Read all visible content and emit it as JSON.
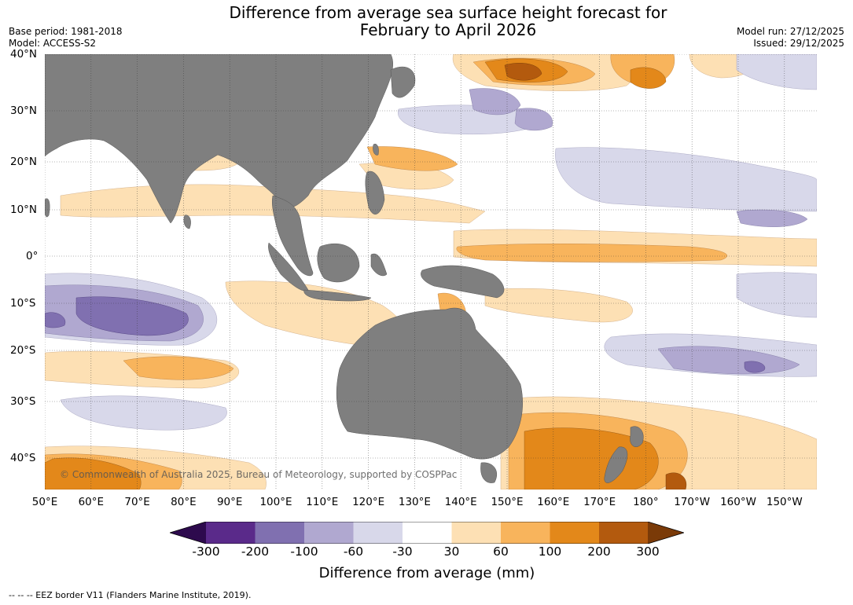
{
  "title": {
    "line1": "Difference from average sea surface height forecast for",
    "line2": "February to April 2026"
  },
  "meta_left": {
    "base_period": "Base period: 1981-2018",
    "model": "Model: ACCESS-S2"
  },
  "meta_right": {
    "model_run": "Model run: 27/12/2025",
    "issued": "Issued: 29/12/2025"
  },
  "map": {
    "x_labels": [
      "50°E",
      "60°E",
      "70°E",
      "80°E",
      "90°E",
      "100°E",
      "110°E",
      "120°E",
      "130°E",
      "140°E",
      "150°E",
      "160°E",
      "170°E",
      "180°",
      "170°W",
      "160°W",
      "150°W"
    ],
    "y_labels": [
      "40°N",
      "30°N",
      "20°N",
      "10°N",
      "0°",
      "10°S",
      "20°S",
      "30°S",
      "40°S"
    ],
    "copyright": "© Commonwealth of Australia 2025, Bureau of Meteorology, supported by COSPPac",
    "colors": {
      "land": "#7f7f7f",
      "neg300": "#2d0a4d",
      "neg200": "#5a2a8a",
      "neg100": "#8070b0",
      "neg60": "#b0a8d0",
      "neg30": "#d8d8ea",
      "zero": "#ffffff",
      "pos30": "#fde0b4",
      "pos60": "#f8b45c",
      "pos100": "#e3881a",
      "pos200": "#b35a0e",
      "pos300": "#7a3a08"
    }
  },
  "colorbar": {
    "ticks": [
      "-300",
      "-200",
      "-100",
      "-60",
      "-30",
      "30",
      "60",
      "100",
      "200",
      "300"
    ],
    "title": "Difference from average (mm)"
  },
  "footer": "--  --  -- EEZ border V11 (Flanders Marine Institute, 2019)."
}
